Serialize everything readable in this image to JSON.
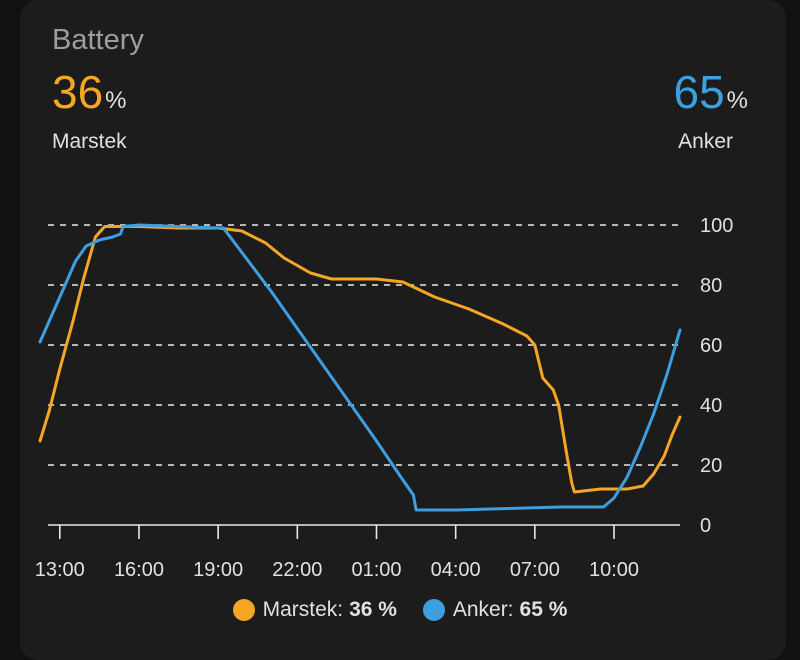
{
  "card": {
    "title": "Battery",
    "left": {
      "value": "36",
      "unit": "%",
      "name": "Marstek",
      "color": "#f5a623"
    },
    "right": {
      "value": "65",
      "unit": "%",
      "name": "Anker",
      "color": "#3d9ee0"
    }
  },
  "legend": [
    {
      "name": "Marstek:",
      "value": "36 %",
      "color": "#f5a623"
    },
    {
      "name": "Anker:",
      "value": "65 %",
      "color": "#3d9ee0"
    }
  ],
  "chart_data": {
    "type": "line",
    "x_unit": "hours since 13:00 (12:15 → 12:30 next day)",
    "xticks": [
      {
        "t": 0,
        "label": "13:00"
      },
      {
        "t": 3,
        "label": "16:00"
      },
      {
        "t": 6,
        "label": "19:00"
      },
      {
        "t": 9,
        "label": "22:00"
      },
      {
        "t": 12,
        "label": "01:00"
      },
      {
        "t": 15,
        "label": "04:00"
      },
      {
        "t": 18,
        "label": "07:00"
      },
      {
        "t": 21,
        "label": "10:00"
      }
    ],
    "yticks": [
      0,
      20,
      40,
      60,
      80,
      100
    ],
    "xlim": [
      -0.75,
      23.5
    ],
    "ylim": [
      0,
      100
    ],
    "grid": true,
    "series": [
      {
        "name": "Marstek",
        "color": "#f5a623",
        "points": [
          [
            -0.75,
            28
          ],
          [
            -0.4,
            38
          ],
          [
            0,
            52
          ],
          [
            0.5,
            68
          ],
          [
            0.9,
            82
          ],
          [
            1.35,
            96
          ],
          [
            1.7,
            99.5
          ],
          [
            2.3,
            99.5
          ],
          [
            3.0,
            99.5
          ],
          [
            4.5,
            99
          ],
          [
            6.0,
            99
          ],
          [
            6.9,
            98
          ],
          [
            7.8,
            94
          ],
          [
            8.5,
            89
          ],
          [
            9.5,
            84
          ],
          [
            10.3,
            82
          ],
          [
            12.0,
            82
          ],
          [
            13.0,
            81
          ],
          [
            14.2,
            76
          ],
          [
            15.5,
            72
          ],
          [
            16.8,
            67
          ],
          [
            17.7,
            63
          ],
          [
            18.0,
            60
          ],
          [
            18.3,
            49
          ],
          [
            18.7,
            45
          ],
          [
            18.9,
            40
          ],
          [
            19.2,
            24
          ],
          [
            19.4,
            14
          ],
          [
            19.5,
            11
          ],
          [
            20.5,
            12
          ],
          [
            21.5,
            12
          ],
          [
            22.1,
            13
          ],
          [
            22.5,
            17
          ],
          [
            22.9,
            23
          ],
          [
            23.2,
            30
          ],
          [
            23.5,
            36
          ]
        ]
      },
      {
        "name": "Anker",
        "color": "#3d9ee0",
        "points": [
          [
            -0.75,
            61
          ],
          [
            -0.3,
            70
          ],
          [
            0.2,
            80
          ],
          [
            0.6,
            88
          ],
          [
            1.0,
            93
          ],
          [
            1.5,
            95
          ],
          [
            2.0,
            96
          ],
          [
            2.3,
            97
          ],
          [
            2.4,
            99.5
          ],
          [
            3.0,
            100
          ],
          [
            4.5,
            99.5
          ],
          [
            6.0,
            99
          ],
          [
            6.2,
            99
          ],
          [
            8.0,
            78
          ],
          [
            10.0,
            53
          ],
          [
            12.0,
            28
          ],
          [
            13.0,
            15
          ],
          [
            13.4,
            10
          ],
          [
            13.5,
            5
          ],
          [
            15.0,
            5
          ],
          [
            17.0,
            5.5
          ],
          [
            19.0,
            6
          ],
          [
            20.6,
            6
          ],
          [
            21.0,
            9
          ],
          [
            21.5,
            16
          ],
          [
            22.0,
            26
          ],
          [
            22.5,
            37
          ],
          [
            23.0,
            50
          ],
          [
            23.5,
            65
          ]
        ]
      }
    ]
  }
}
